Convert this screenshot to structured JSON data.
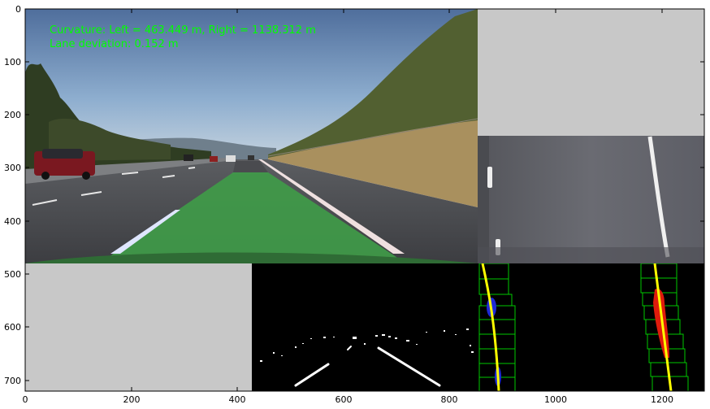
{
  "figure": {
    "title": "",
    "x_ticks": [
      "0",
      "200",
      "400",
      "600",
      "800",
      "1000",
      "1200"
    ],
    "y_ticks": [
      "0",
      "100",
      "200",
      "300",
      "400",
      "500",
      "600",
      "700"
    ]
  },
  "overlay": {
    "curvature_line": "Curvature: Left = 463.449 m, Right = 1138.312 m",
    "deviation_line": "Lane deviation: 0.152 m"
  },
  "colors": {
    "overlay_text": "#00ff00",
    "lane_fill": "#3f9c48",
    "fit_line": "#ffff00",
    "search_window": "#00c800",
    "left_pixels": "#1e2ad6",
    "right_pixels": "#e01b0c",
    "empty_panel": "#c8c8c8"
  },
  "chart_data": {
    "type": "image",
    "xlabel": "",
    "ylabel": "",
    "xlim": [
      0,
      1280
    ],
    "ylim": [
      720,
      0
    ],
    "x_ticks": [
      0,
      200,
      400,
      600,
      800,
      1000,
      1200
    ],
    "y_ticks": [
      0,
      100,
      200,
      300,
      400,
      500,
      600,
      700
    ],
    "grid": false,
    "panels": [
      {
        "name": "lane-overlay",
        "x": [
          0,
          853
        ],
        "y": [
          0,
          480
        ]
      },
      {
        "name": "empty-top-right",
        "x": [
          853,
          1280
        ],
        "y": [
          0,
          240
        ]
      },
      {
        "name": "birds-eye-warp",
        "x": [
          853,
          1280
        ],
        "y": [
          240,
          480
        ]
      },
      {
        "name": "empty-bottom-left",
        "x": [
          0,
          427
        ],
        "y": [
          480,
          720
        ]
      },
      {
        "name": "binary-threshold",
        "x": [
          427,
          853
        ],
        "y": [
          480,
          720
        ]
      },
      {
        "name": "sliding-window-fit",
        "x": [
          853,
          1280
        ],
        "y": [
          480,
          720
        ]
      }
    ]
  }
}
